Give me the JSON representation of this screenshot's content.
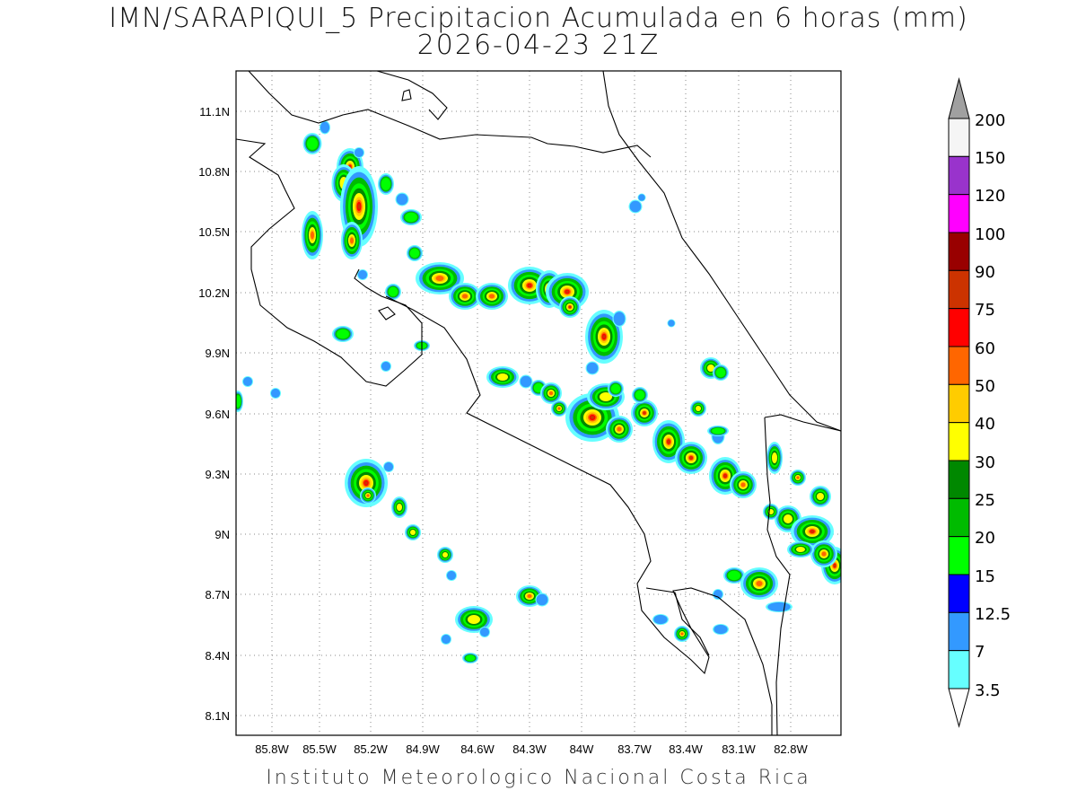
{
  "header": {
    "title_line1": "IMN/SARAPIQUI_5 Precipitacion Acumulada en 6 horas (mm)",
    "title_line2": "2026-04-23 21Z"
  },
  "footer": {
    "credit": "Instituto Meteorologico Nacional Costa Rica"
  },
  "map": {
    "lat_ticks": [
      "11.1N",
      "10.8N",
      "10.5N",
      "10.2N",
      "9.9N",
      "9.6N",
      "9.3N",
      "9N",
      "8.7N",
      "8.4N",
      "8.1N"
    ],
    "lon_ticks": [
      "85.8W",
      "85.5W",
      "85.2W",
      "84.9W",
      "84.6W",
      "84.3W",
      "84W",
      "83.7W",
      "83.4W",
      "83.1W",
      "82.8W"
    ],
    "grid": true,
    "grid_style": "dotted",
    "coastline_color": "#000000"
  },
  "colorbar": {
    "labels": [
      "200",
      "150",
      "120",
      "100",
      "90",
      "75",
      "60",
      "50",
      "40",
      "30",
      "25",
      "20",
      "15",
      "12.5",
      "7",
      "3.5"
    ],
    "colors": [
      "#f5f5f5",
      "#9933cc",
      "#ff00ff",
      "#990000",
      "#cc3300",
      "#ff0000",
      "#ff6600",
      "#ffcc00",
      "#ffff00",
      "#008800",
      "#00bb00",
      "#00ff00",
      "#0000ff",
      "#3399ff",
      "#66ffff"
    ],
    "top_arrow_color": "#a0a0a0",
    "bottom_arrow_color": "#ffffff"
  }
}
